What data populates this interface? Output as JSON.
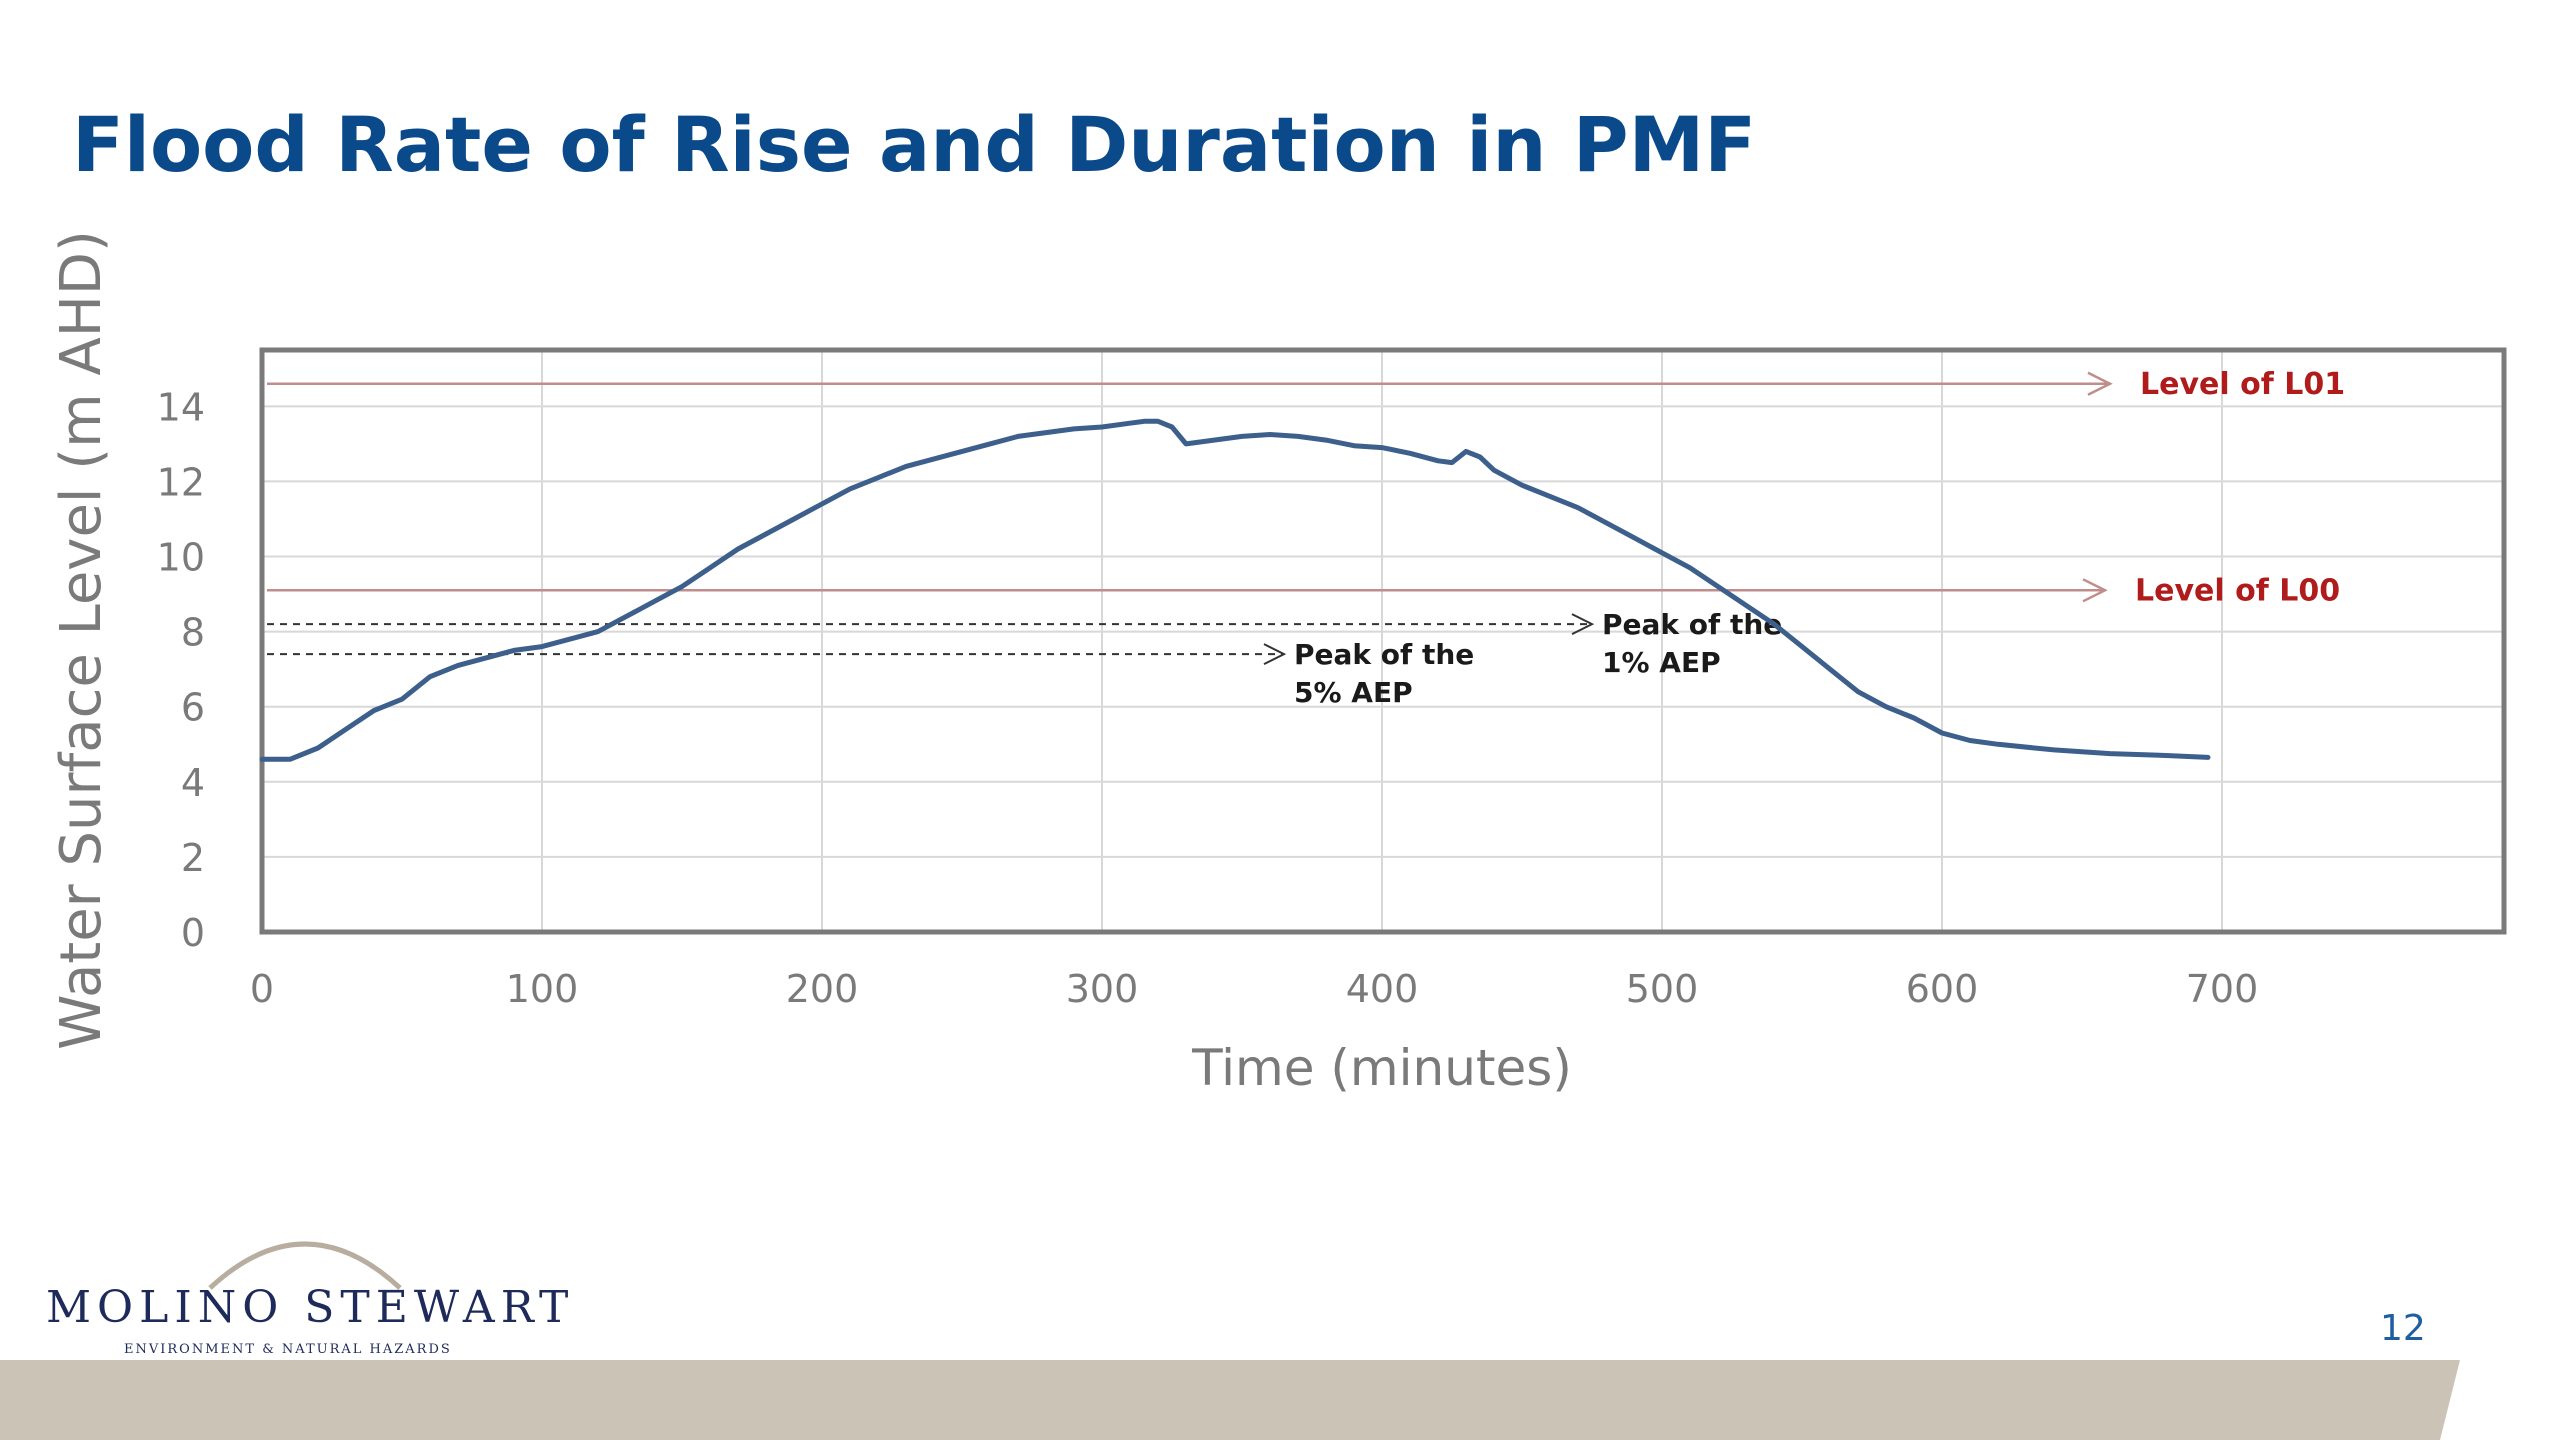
{
  "slide": {
    "title": "Flood Rate of Rise and Duration in PMF",
    "page_number": "12"
  },
  "logo": {
    "wordmark": "MOLINO STEWART",
    "tagline": "ENVIRONMENT & NATURAL HAZARDS"
  },
  "colors": {
    "title": "#0a4a8a",
    "series_line": "#3d5f8c",
    "reference_line": "#c08c8c",
    "reference_label": "#b01c1c",
    "footer_band": "#cbc3b6"
  },
  "chart_data": {
    "type": "line",
    "xlabel": "Time (minutes)",
    "ylabel": "Water Surface Level (m AHD)",
    "xlim": [
      0,
      800
    ],
    "ylim": [
      0,
      15.5
    ],
    "xticks": [
      0,
      100,
      200,
      300,
      400,
      500,
      600,
      700
    ],
    "yticks": [
      0,
      2,
      4,
      6,
      8,
      10,
      12,
      14
    ],
    "grid": true,
    "series": [
      {
        "x": [
          0,
          10,
          20,
          30,
          40,
          50,
          60,
          70,
          80,
          90,
          100,
          110,
          120,
          130,
          140,
          150,
          160,
          170,
          180,
          190,
          200,
          210,
          220,
          230,
          240,
          250,
          260,
          270,
          280,
          290,
          300,
          310,
          315,
          320,
          325,
          330,
          340,
          350,
          360,
          370,
          380,
          390,
          400,
          410,
          420,
          425,
          430,
          435,
          440,
          450,
          460,
          470,
          480,
          490,
          500,
          510,
          520,
          530,
          540,
          550,
          560,
          570,
          580,
          590,
          600,
          610,
          620,
          640,
          660,
          680,
          695
        ],
        "y": [
          4.6,
          4.6,
          4.9,
          5.4,
          5.9,
          6.2,
          6.8,
          7.1,
          7.3,
          7.5,
          7.6,
          7.8,
          8.0,
          8.4,
          8.8,
          9.2,
          9.7,
          10.2,
          10.6,
          11.0,
          11.4,
          11.8,
          12.1,
          12.4,
          12.6,
          12.8,
          13.0,
          13.2,
          13.3,
          13.4,
          13.45,
          13.55,
          13.6,
          13.6,
          13.45,
          13.0,
          13.1,
          13.2,
          13.25,
          13.2,
          13.1,
          12.95,
          12.9,
          12.75,
          12.55,
          12.5,
          12.8,
          12.65,
          12.3,
          11.9,
          11.6,
          11.3,
          10.9,
          10.5,
          10.1,
          9.7,
          9.2,
          8.7,
          8.2,
          7.6,
          7.0,
          6.4,
          6.0,
          5.7,
          5.3,
          5.1,
          5.0,
          4.85,
          4.75,
          4.7,
          4.65
        ]
      }
    ],
    "reference_lines": [
      {
        "y": 14.6,
        "label": "Level of L01"
      },
      {
        "y": 9.1,
        "label": "Level of L00"
      }
    ],
    "annotations": [
      {
        "y": 8.2,
        "x_end": 475,
        "line1": "Peak of the",
        "line2": "1% AEP"
      },
      {
        "y": 7.4,
        "x_end": 365,
        "line1": "Peak of the",
        "line2": "5% AEP"
      }
    ]
  }
}
